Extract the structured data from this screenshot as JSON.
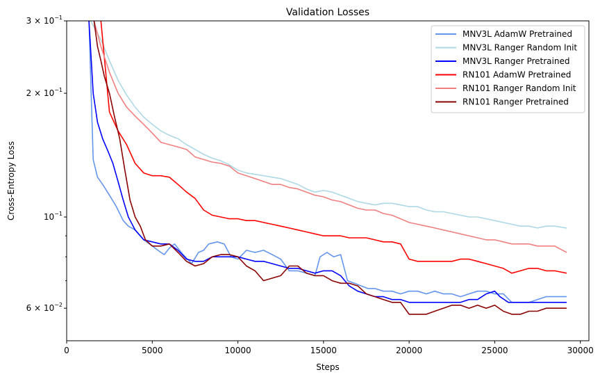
{
  "chart_data": {
    "type": "line",
    "title": "Validation Losses",
    "xlabel": "Steps",
    "ylabel": "Cross-Entropy Loss",
    "xlim": [
      0,
      30500
    ],
    "ylim": [
      0.05,
      0.3
    ],
    "yscale": "log",
    "grid": false,
    "legend_position": "top-right",
    "x_ticks": [
      {
        "value": 0,
        "label": "0"
      },
      {
        "value": 5000,
        "label": "5000"
      },
      {
        "value": 10000,
        "label": "10000"
      },
      {
        "value": 15000,
        "label": "15000"
      },
      {
        "value": 20000,
        "label": "20000"
      },
      {
        "value": 25000,
        "label": "25000"
      },
      {
        "value": 30000,
        "label": "30000"
      }
    ],
    "y_ticks": [
      {
        "value": 0.06,
        "base": "6",
        "exp": "−2"
      },
      {
        "value": 0.1,
        "label": "10",
        "exp": "−1"
      },
      {
        "value": 0.2,
        "base": "2",
        "exp": "−1"
      },
      {
        "value": 0.3,
        "base": "3",
        "exp": "−1"
      }
    ],
    "series": [
      {
        "name": "MNV3L AdamW Pretrained",
        "color": "#6495ed",
        "x": [
          1300,
          1550,
          1800,
          2100,
          2500,
          2900,
          3300,
          3600,
          4000,
          4500,
          5000,
          5500,
          5700,
          6000,
          6300,
          6800,
          7300,
          7700,
          8000,
          8300,
          8800,
          9200,
          9600,
          10000,
          10500,
          11000,
          11500,
          12000,
          12500,
          13000,
          13500,
          14000,
          14500,
          14800,
          15200,
          15600,
          16000,
          16400,
          16800,
          17200,
          17600,
          18000,
          18500,
          19000,
          19500,
          20000,
          20500,
          21000,
          21500,
          22000,
          22500,
          23000,
          23500,
          24000,
          24500,
          25000,
          25500,
          26000,
          26500,
          27000,
          27500,
          28000,
          28500,
          29200
        ],
        "y": [
          0.3,
          0.138,
          0.125,
          0.12,
          0.113,
          0.106,
          0.098,
          0.095,
          0.093,
          0.088,
          0.085,
          0.082,
          0.081,
          0.084,
          0.086,
          0.081,
          0.077,
          0.082,
          0.083,
          0.086,
          0.087,
          0.086,
          0.08,
          0.079,
          0.083,
          0.082,
          0.083,
          0.081,
          0.079,
          0.074,
          0.074,
          0.073,
          0.072,
          0.08,
          0.082,
          0.08,
          0.081,
          0.07,
          0.069,
          0.068,
          0.067,
          0.067,
          0.066,
          0.066,
          0.065,
          0.066,
          0.066,
          0.065,
          0.066,
          0.065,
          0.065,
          0.064,
          0.065,
          0.066,
          0.066,
          0.065,
          0.065,
          0.062,
          0.062,
          0.062,
          0.063,
          0.064,
          0.064,
          0.064
        ]
      },
      {
        "name": "MNV3L Ranger Random Init",
        "color": "#add8e6",
        "x": [
          1400,
          2000,
          2500,
          3000,
          3500,
          4000,
          4500,
          5000,
          5500,
          6000,
          6500,
          7000,
          7500,
          8000,
          8500,
          9000,
          9500,
          10000,
          10500,
          11000,
          11500,
          12000,
          12500,
          13000,
          13500,
          14000,
          14500,
          15000,
          15500,
          16000,
          16500,
          17000,
          17500,
          18000,
          18500,
          19000,
          19500,
          20000,
          20500,
          21000,
          21500,
          22000,
          22500,
          23000,
          23500,
          24000,
          24500,
          25000,
          25500,
          26000,
          26500,
          27000,
          27500,
          28000,
          28500,
          29200
        ],
        "y": [
          0.3,
          0.27,
          0.24,
          0.215,
          0.198,
          0.185,
          0.175,
          0.168,
          0.162,
          0.158,
          0.155,
          0.15,
          0.146,
          0.142,
          0.139,
          0.137,
          0.134,
          0.13,
          0.128,
          0.127,
          0.126,
          0.125,
          0.124,
          0.122,
          0.12,
          0.117,
          0.115,
          0.116,
          0.115,
          0.113,
          0.111,
          0.109,
          0.108,
          0.107,
          0.108,
          0.108,
          0.107,
          0.106,
          0.106,
          0.104,
          0.103,
          0.103,
          0.102,
          0.101,
          0.1,
          0.1,
          0.099,
          0.098,
          0.097,
          0.096,
          0.095,
          0.095,
          0.094,
          0.095,
          0.095,
          0.094
        ]
      },
      {
        "name": "MNV3L Ranger Pretrained",
        "color": "#0000ff",
        "x": [
          1300,
          1550,
          1800,
          2100,
          2400,
          2700,
          3000,
          3300,
          3600,
          4000,
          4500,
          5000,
          5500,
          6000,
          6500,
          7000,
          7500,
          8000,
          8500,
          9000,
          9500,
          10000,
          10500,
          11000,
          11500,
          12000,
          12500,
          13000,
          13500,
          14000,
          14500,
          15000,
          15500,
          16000,
          16500,
          17000,
          17500,
          18000,
          18500,
          19000,
          19500,
          20000,
          20500,
          21000,
          21500,
          22000,
          22500,
          23000,
          23500,
          24000,
          24500,
          25000,
          25300,
          25800,
          26300,
          26800,
          27300,
          27800,
          28300,
          29200
        ],
        "y": [
          0.3,
          0.2,
          0.17,
          0.155,
          0.145,
          0.135,
          0.122,
          0.11,
          0.1,
          0.093,
          0.088,
          0.087,
          0.086,
          0.086,
          0.083,
          0.079,
          0.078,
          0.078,
          0.08,
          0.08,
          0.08,
          0.08,
          0.079,
          0.078,
          0.078,
          0.077,
          0.076,
          0.075,
          0.075,
          0.074,
          0.073,
          0.074,
          0.074,
          0.072,
          0.068,
          0.066,
          0.065,
          0.064,
          0.064,
          0.063,
          0.063,
          0.062,
          0.062,
          0.062,
          0.062,
          0.062,
          0.062,
          0.062,
          0.063,
          0.063,
          0.065,
          0.066,
          0.064,
          0.062,
          0.062,
          0.062,
          0.062,
          0.062,
          0.062,
          0.062
        ]
      },
      {
        "name": "RN101 AdamW Pretrained",
        "color": "#ff0000",
        "x": [
          2000,
          2500,
          3000,
          3500,
          4000,
          4500,
          5000,
          5500,
          6000,
          6500,
          7000,
          7500,
          8000,
          8500,
          9000,
          9500,
          10000,
          10500,
          11000,
          11500,
          12000,
          12500,
          13000,
          13500,
          14000,
          14500,
          15000,
          15500,
          16000,
          16500,
          17000,
          17500,
          18000,
          18500,
          19000,
          19500,
          20000,
          20500,
          21000,
          21500,
          22000,
          22500,
          23000,
          23500,
          24000,
          24500,
          25000,
          25500,
          26000,
          26500,
          27000,
          27500,
          28000,
          28500,
          29200
        ],
        "y": [
          0.3,
          0.18,
          0.162,
          0.15,
          0.135,
          0.128,
          0.126,
          0.126,
          0.125,
          0.12,
          0.115,
          0.111,
          0.104,
          0.101,
          0.1,
          0.099,
          0.099,
          0.098,
          0.098,
          0.097,
          0.096,
          0.095,
          0.094,
          0.093,
          0.092,
          0.091,
          0.09,
          0.09,
          0.09,
          0.089,
          0.089,
          0.089,
          0.088,
          0.087,
          0.087,
          0.086,
          0.079,
          0.078,
          0.078,
          0.078,
          0.078,
          0.078,
          0.079,
          0.079,
          0.078,
          0.077,
          0.076,
          0.075,
          0.073,
          0.074,
          0.075,
          0.075,
          0.074,
          0.074,
          0.073
        ]
      },
      {
        "name": "RN101 Ranger Random Init",
        "color": "#f08080",
        "x": [
          1600,
          2000,
          2500,
          3000,
          3500,
          4000,
          4500,
          5000,
          5500,
          6000,
          6500,
          7000,
          7500,
          8000,
          8500,
          9000,
          9500,
          10000,
          10500,
          11000,
          11500,
          12000,
          12500,
          13000,
          13500,
          14000,
          14500,
          15000,
          15500,
          16000,
          16500,
          17000,
          17500,
          18000,
          18500,
          19000,
          19500,
          20000,
          20500,
          21000,
          21500,
          22000,
          22500,
          23000,
          23500,
          24000,
          24500,
          25000,
          25500,
          26000,
          26500,
          27000,
          27500,
          28000,
          28500,
          29200
        ],
        "y": [
          0.3,
          0.26,
          0.225,
          0.2,
          0.185,
          0.176,
          0.168,
          0.16,
          0.152,
          0.15,
          0.148,
          0.146,
          0.14,
          0.138,
          0.136,
          0.135,
          0.133,
          0.128,
          0.126,
          0.124,
          0.122,
          0.12,
          0.12,
          0.118,
          0.117,
          0.115,
          0.113,
          0.112,
          0.11,
          0.109,
          0.107,
          0.105,
          0.104,
          0.104,
          0.102,
          0.101,
          0.099,
          0.097,
          0.096,
          0.095,
          0.094,
          0.093,
          0.092,
          0.091,
          0.09,
          0.089,
          0.088,
          0.088,
          0.087,
          0.086,
          0.086,
          0.086,
          0.085,
          0.085,
          0.085,
          0.082
        ]
      },
      {
        "name": "RN101 Ranger Pretrained",
        "color": "#8b0000",
        "x": [
          1600,
          1800,
          2000,
          2200,
          2500,
          2800,
          3100,
          3400,
          3700,
          4000,
          4300,
          4600,
          5000,
          5500,
          6000,
          6500,
          7000,
          7500,
          8000,
          8500,
          9000,
          9500,
          10000,
          10500,
          11000,
          11500,
          12000,
          12500,
          13000,
          13500,
          14000,
          14500,
          15000,
          15500,
          16000,
          16500,
          17000,
          17500,
          18000,
          18500,
          19000,
          19500,
          20000,
          20500,
          21000,
          21500,
          22000,
          22500,
          23000,
          23500,
          24000,
          24500,
          25000,
          25500,
          26000,
          26500,
          27000,
          27500,
          28000,
          28500,
          29200
        ],
        "y": [
          0.3,
          0.26,
          0.24,
          0.22,
          0.2,
          0.175,
          0.155,
          0.13,
          0.11,
          0.1,
          0.095,
          0.088,
          0.085,
          0.085,
          0.086,
          0.082,
          0.078,
          0.076,
          0.077,
          0.08,
          0.081,
          0.081,
          0.08,
          0.076,
          0.074,
          0.07,
          0.071,
          0.072,
          0.076,
          0.076,
          0.073,
          0.072,
          0.072,
          0.07,
          0.069,
          0.069,
          0.068,
          0.065,
          0.064,
          0.063,
          0.062,
          0.062,
          0.058,
          0.058,
          0.058,
          0.059,
          0.06,
          0.061,
          0.061,
          0.06,
          0.061,
          0.06,
          0.061,
          0.059,
          0.058,
          0.058,
          0.059,
          0.059,
          0.06,
          0.06,
          0.06
        ]
      }
    ]
  }
}
